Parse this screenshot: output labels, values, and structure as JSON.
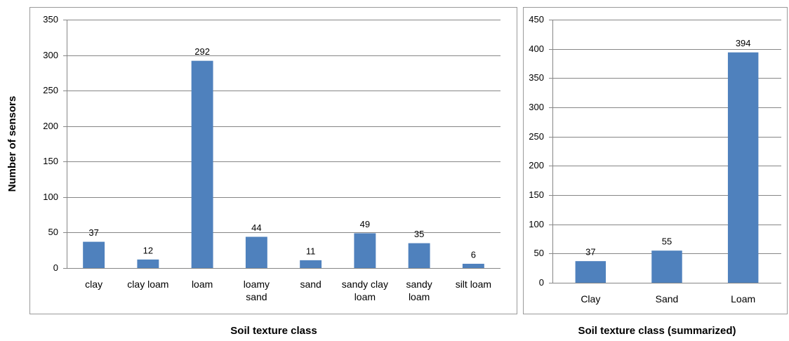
{
  "chart_data": [
    {
      "type": "bar",
      "y_label": "Number of sensors",
      "x_label": "Soil texture class",
      "categories": [
        "clay",
        "clay loam",
        "loam",
        "loamy sand",
        "sand",
        "sandy clay loam",
        "sandy loam",
        "silt loam"
      ],
      "values": [
        37,
        12,
        292,
        44,
        11,
        49,
        35,
        6
      ],
      "color": "#4f81bd",
      "ylim": [
        0,
        350
      ],
      "yticks": [
        0,
        50,
        100,
        150,
        200,
        250,
        300,
        350
      ],
      "grid": true
    },
    {
      "type": "bar",
      "x_label": "Soil texture class (summarized)",
      "categories": [
        "Clay",
        "Sand",
        "Loam"
      ],
      "values": [
        37,
        55,
        394
      ],
      "color": "#4f81bd",
      "ylim": [
        0,
        450
      ],
      "yticks": [
        0,
        50,
        100,
        150,
        200,
        250,
        300,
        350,
        400,
        450
      ],
      "grid": true
    }
  ]
}
